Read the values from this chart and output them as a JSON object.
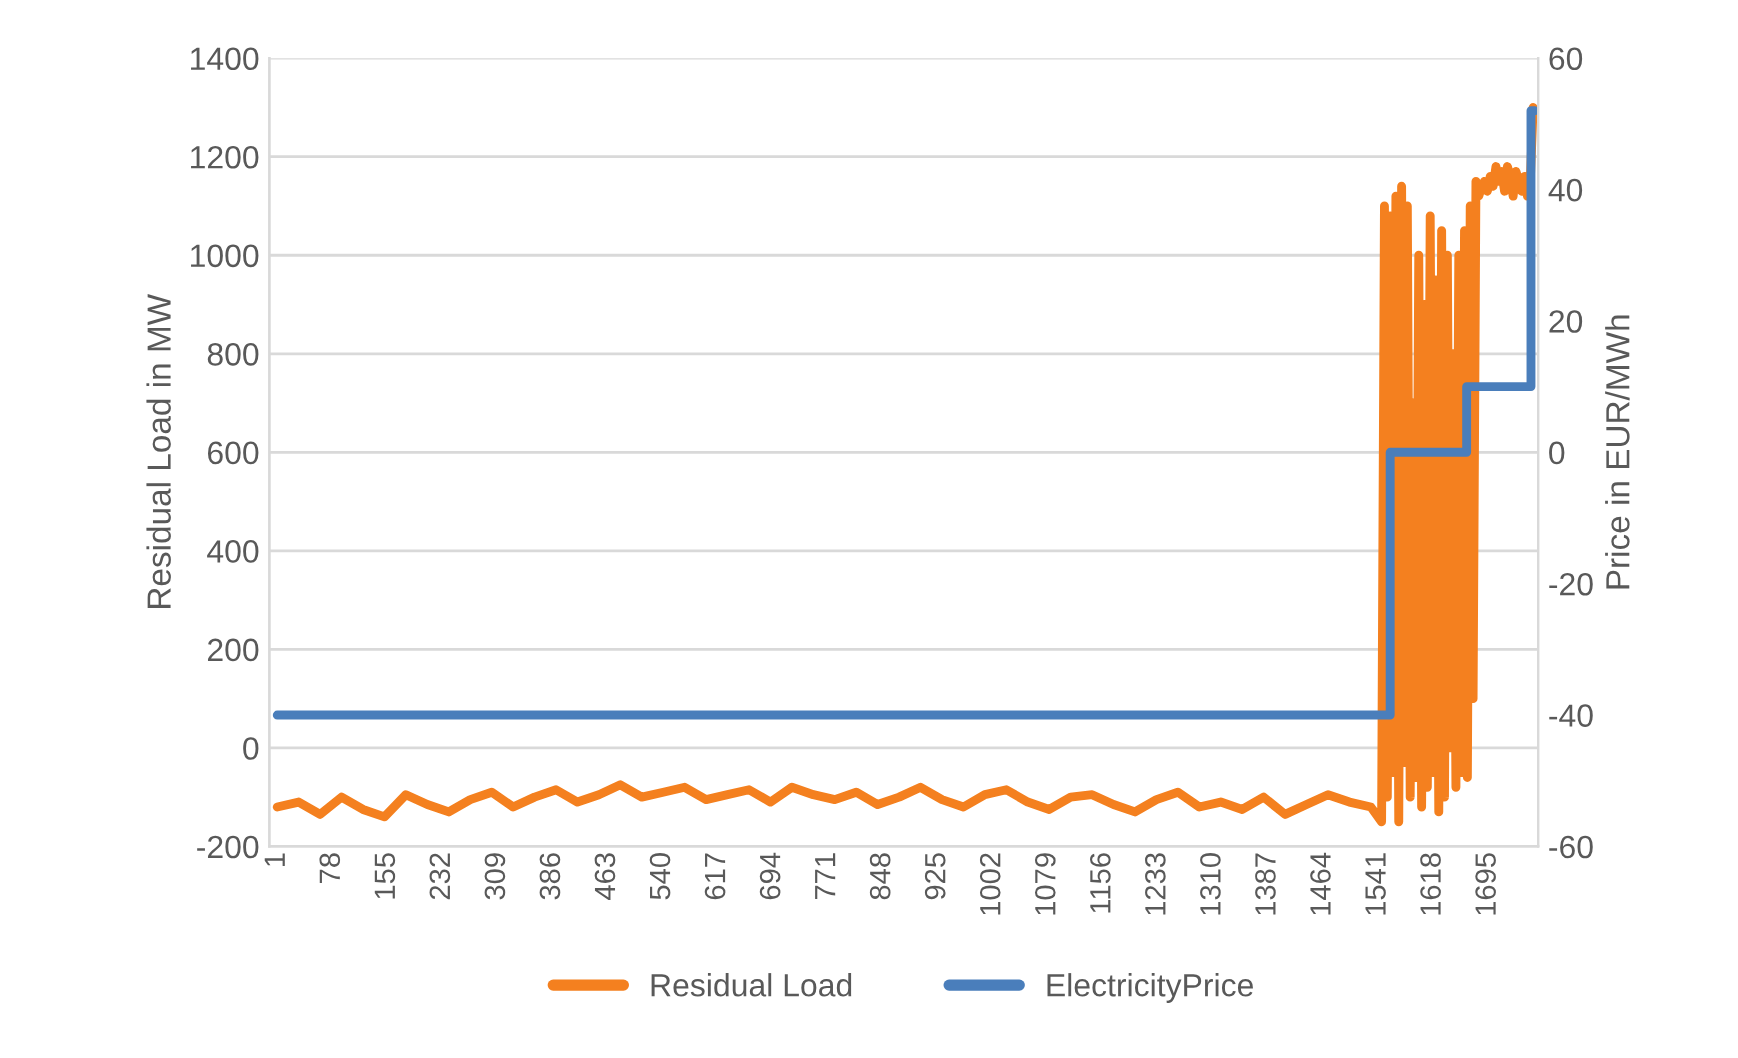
{
  "chart_data": {
    "type": "line",
    "ylabel": "Residual Load in MW",
    "y2label": "Price in EUR/MWh",
    "xlim": [
      -10,
      1765
    ],
    "xticks": [
      1,
      78,
      155,
      232,
      309,
      386,
      463,
      540,
      617,
      694,
      771,
      848,
      925,
      1002,
      1079,
      1156,
      1233,
      1310,
      1387,
      1464,
      1541,
      1618,
      1695
    ],
    "ylim": [
      -200,
      1400
    ],
    "yticks": [
      -200,
      0,
      200,
      400,
      600,
      800,
      1000,
      1200,
      1400
    ],
    "y2lim": [
      -60,
      60
    ],
    "y2ticks": [
      -60,
      -40,
      -20,
      0,
      20,
      40,
      60
    ],
    "grid": "y",
    "legend": "bottom",
    "series": [
      {
        "name": "Residual Load",
        "color": "#f4801f",
        "x": [
          1,
          31,
          61,
          91,
          121,
          151,
          181,
          211,
          241,
          271,
          301,
          331,
          361,
          391,
          421,
          451,
          481,
          511,
          541,
          571,
          601,
          631,
          661,
          691,
          721,
          751,
          781,
          811,
          841,
          871,
          901,
          931,
          961,
          991,
          1021,
          1051,
          1081,
          1111,
          1141,
          1171,
          1201,
          1231,
          1261,
          1291,
          1321,
          1351,
          1381,
          1411,
          1441,
          1471,
          1501,
          1531,
          1546,
          1550,
          1554,
          1558,
          1562,
          1566,
          1570,
          1574,
          1578,
          1582,
          1586,
          1590,
          1594,
          1598,
          1602,
          1606,
          1610,
          1614,
          1618,
          1622,
          1626,
          1630,
          1634,
          1638,
          1642,
          1646,
          1650,
          1654,
          1658,
          1662,
          1666,
          1670,
          1674,
          1678,
          1682,
          1686,
          1690,
          1694,
          1698,
          1702,
          1706,
          1710,
          1714,
          1718,
          1722,
          1726,
          1730,
          1734,
          1738,
          1742,
          1746,
          1750,
          1754,
          1758
        ],
        "values": [
          -120,
          -110,
          -135,
          -100,
          -125,
          -140,
          -95,
          -115,
          -130,
          -105,
          -90,
          -120,
          -100,
          -85,
          -110,
          -95,
          -75,
          -100,
          -90,
          -80,
          -105,
          -95,
          -85,
          -110,
          -80,
          -95,
          -105,
          -90,
          -115,
          -100,
          -80,
          -105,
          -120,
          -95,
          -85,
          -110,
          -125,
          -100,
          -95,
          -115,
          -130,
          -105,
          -90,
          -120,
          -110,
          -125,
          -100,
          -135,
          -115,
          -95,
          -110,
          -120,
          -150,
          1100,
          -100,
          1080,
          -50,
          1120,
          -150,
          1140,
          -30,
          1100,
          -100,
          700,
          -60,
          1000,
          -120,
          900,
          -80,
          1080,
          -50,
          950,
          -130,
          1050,
          -100,
          1000,
          0,
          800,
          -80,
          1000,
          -50,
          1050,
          -60,
          1100,
          100,
          1150,
          1120,
          1140,
          1150,
          1130,
          1160,
          1140,
          1180,
          1150,
          1170,
          1130,
          1180,
          1160,
          1120,
          1170,
          1150,
          1130,
          1160,
          1120,
          1150,
          1300
        ]
      },
      {
        "name": "ElectricityPrice",
        "color": "#4a7ebb",
        "type": "step",
        "axis": "y2",
        "x": [
          1,
          1558,
          1665,
          1755,
          1760
        ],
        "values": [
          -40,
          0,
          10,
          52,
          52
        ]
      }
    ]
  }
}
